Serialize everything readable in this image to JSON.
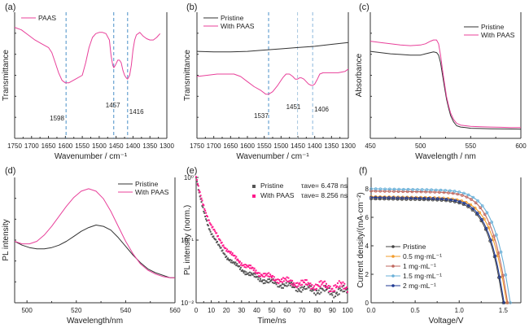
{
  "chart_data": [
    {
      "panel": "(a)",
      "type": "line",
      "xlabel": "Wavenumber / cm⁻¹",
      "ylabel": "Transmittance",
      "xlim": [
        1750,
        1300
      ],
      "ylim": [
        0,
        1
      ],
      "xticks": [
        "1750",
        "1700",
        "1650",
        "1600",
        "1550",
        "1500",
        "1450",
        "1400",
        "1350",
        "1300"
      ],
      "legend": {
        "placement": "top-left",
        "entries": [
          "PAAS"
        ]
      },
      "annotations": [
        {
          "text": "1598",
          "x": 1598
        },
        {
          "text": "1457",
          "x": 1457
        },
        {
          "text": "1416",
          "x": 1416
        }
      ],
      "series": [
        {
          "name": "PAAS",
          "color": "#e8409a",
          "x": [
            1750,
            1730,
            1710,
            1690,
            1670,
            1650,
            1640,
            1630,
            1620,
            1610,
            1600,
            1590,
            1570,
            1550,
            1540,
            1530,
            1520,
            1510,
            1500,
            1490,
            1480,
            1470,
            1465,
            1460,
            1457,
            1452,
            1445,
            1440,
            1435,
            1430,
            1425,
            1420,
            1416,
            1410,
            1405,
            1400,
            1395,
            1390,
            1380,
            1370,
            1360,
            1350,
            1340,
            1330,
            1320
          ],
          "y": [
            0.88,
            0.86,
            0.82,
            0.78,
            0.75,
            0.72,
            0.68,
            0.6,
            0.52,
            0.46,
            0.44,
            0.44,
            0.47,
            0.5,
            0.6,
            0.72,
            0.8,
            0.83,
            0.84,
            0.84,
            0.83,
            0.78,
            0.66,
            0.58,
            0.56,
            0.58,
            0.62,
            0.62,
            0.6,
            0.54,
            0.5,
            0.48,
            0.47,
            0.5,
            0.58,
            0.7,
            0.78,
            0.82,
            0.84,
            0.81,
            0.79,
            0.78,
            0.78,
            0.8,
            0.83
          ]
        }
      ]
    },
    {
      "panel": "(b)",
      "type": "line",
      "xlabel": "Wavenumber / cm⁻¹",
      "ylabel": "Transmittance",
      "xlim": [
        1750,
        1300
      ],
      "ylim": [
        0,
        1
      ],
      "xticks": [
        "1750",
        "1700",
        "1650",
        "1600",
        "1550",
        "1500",
        "1450",
        "1400",
        "1350",
        "1300"
      ],
      "legend": {
        "placement": "top-left",
        "entries": [
          "Pristine",
          "With PAAS"
        ]
      },
      "annotations": [
        {
          "text": "1537",
          "x": 1537
        },
        {
          "text": "1451",
          "x": 1451
        },
        {
          "text": "1406",
          "x": 1406
        }
      ],
      "series": [
        {
          "name": "Pristine",
          "color": "#333333",
          "x": [
            1750,
            1700,
            1650,
            1600,
            1550,
            1500,
            1450,
            1400,
            1350,
            1300
          ],
          "y": [
            0.69,
            0.685,
            0.685,
            0.69,
            0.7,
            0.71,
            0.72,
            0.73,
            0.745,
            0.76
          ]
        },
        {
          "name": "With PAAS",
          "color": "#e8409a",
          "x": [
            1750,
            1720,
            1690,
            1660,
            1640,
            1620,
            1600,
            1580,
            1560,
            1545,
            1537,
            1525,
            1510,
            1495,
            1485,
            1475,
            1465,
            1458,
            1451,
            1445,
            1440,
            1432,
            1425,
            1418,
            1410,
            1406,
            1400,
            1392,
            1385,
            1375,
            1350,
            1330,
            1310,
            1300
          ],
          "y": [
            0.49,
            0.5,
            0.51,
            0.51,
            0.51,
            0.49,
            0.45,
            0.41,
            0.38,
            0.35,
            0.35,
            0.37,
            0.42,
            0.48,
            0.51,
            0.51,
            0.49,
            0.47,
            0.47,
            0.48,
            0.48,
            0.47,
            0.45,
            0.43,
            0.42,
            0.42,
            0.43,
            0.47,
            0.51,
            0.52,
            0.52,
            0.52,
            0.53,
            0.55
          ]
        }
      ]
    },
    {
      "panel": "(c)",
      "type": "line",
      "xlabel": "Wavelength / nm",
      "ylabel": "Absorbance",
      "xlim": [
        450,
        600
      ],
      "ylim": [
        0,
        1
      ],
      "xticks": [
        "450",
        "500",
        "550",
        "600"
      ],
      "legend": {
        "placement": "top-right",
        "entries": [
          "Pristine",
          "With PAAS"
        ]
      },
      "series": [
        {
          "name": "Pristine",
          "color": "#333333",
          "x": [
            450,
            460,
            470,
            480,
            490,
            500,
            505,
            510,
            513,
            516,
            518,
            520,
            522,
            524,
            526,
            528,
            530,
            533,
            536,
            540,
            545,
            550,
            560,
            570,
            580,
            590,
            600
          ],
          "y": [
            0.69,
            0.68,
            0.67,
            0.665,
            0.66,
            0.66,
            0.67,
            0.68,
            0.685,
            0.68,
            0.66,
            0.6,
            0.5,
            0.4,
            0.31,
            0.24,
            0.18,
            0.13,
            0.1,
            0.09,
            0.085,
            0.08,
            0.078,
            0.076,
            0.075,
            0.074,
            0.073
          ]
        },
        {
          "name": "With PAAS",
          "color": "#e8409a",
          "x": [
            450,
            460,
            470,
            480,
            490,
            500,
            505,
            510,
            513,
            516,
            518,
            520,
            522,
            524,
            526,
            528,
            530,
            533,
            536,
            540,
            545,
            550,
            560,
            570,
            580,
            590,
            600
          ],
          "y": [
            0.77,
            0.76,
            0.75,
            0.74,
            0.735,
            0.74,
            0.75,
            0.77,
            0.78,
            0.78,
            0.75,
            0.66,
            0.54,
            0.43,
            0.33,
            0.26,
            0.2,
            0.15,
            0.12,
            0.105,
            0.1,
            0.095,
            0.092,
            0.09,
            0.088,
            0.086,
            0.085
          ]
        }
      ]
    },
    {
      "panel": "(d)",
      "type": "line",
      "xlabel": "Wavelength/nm",
      "ylabel": "PL intensity",
      "xlim": [
        495,
        560
      ],
      "ylim": [
        0,
        1
      ],
      "xticks": [
        "500",
        "520",
        "540",
        "560"
      ],
      "legend": {
        "placement": "top-right",
        "entries": [
          "Pristine",
          "With PAAS"
        ]
      },
      "series": [
        {
          "name": "Pristine",
          "color": "#333333",
          "x": [
            495,
            498,
            501,
            504,
            507,
            510,
            513,
            516,
            519,
            522,
            525,
            528,
            531,
            534,
            537,
            540,
            543,
            546,
            549,
            552,
            555,
            558,
            560
          ],
          "y": [
            0.49,
            0.46,
            0.44,
            0.43,
            0.43,
            0.44,
            0.46,
            0.49,
            0.53,
            0.57,
            0.6,
            0.62,
            0.61,
            0.58,
            0.52,
            0.45,
            0.38,
            0.32,
            0.27,
            0.24,
            0.22,
            0.2,
            0.2
          ]
        },
        {
          "name": "With PAAS",
          "color": "#e8409a",
          "x": [
            495,
            498,
            501,
            504,
            507,
            510,
            513,
            516,
            519,
            522,
            525,
            528,
            531,
            534,
            537,
            540,
            543,
            546,
            549,
            552,
            555,
            558,
            560
          ],
          "y": [
            0.49,
            0.47,
            0.47,
            0.49,
            0.54,
            0.61,
            0.69,
            0.77,
            0.84,
            0.89,
            0.91,
            0.89,
            0.83,
            0.73,
            0.61,
            0.49,
            0.39,
            0.31,
            0.26,
            0.23,
            0.21,
            0.2,
            0.2
          ]
        }
      ]
    },
    {
      "panel": "(e)",
      "type": "scatter",
      "xlabel": "Time/ns",
      "ylabel": "PL intensity (norm.)",
      "xlim": [
        0,
        100
      ],
      "yscale": "log",
      "ylim": [
        0.01,
        1
      ],
      "xticks": [
        "0",
        "10",
        "20",
        "30",
        "40",
        "50",
        "60",
        "70",
        "80",
        "90",
        "100"
      ],
      "yticks": [
        "10⁻²",
        "10⁻¹",
        "10⁰"
      ],
      "legend": {
        "placement": "top-right",
        "entries": [
          "Pristine",
          "With PAAS"
        ]
      },
      "annotations": [
        {
          "text": "τave= 6.478 ns",
          "series": "Pristine"
        },
        {
          "text": "τave= 8.256 ns",
          "series": "With PAAS"
        }
      ],
      "series": [
        {
          "name": "Pristine",
          "color": "#555555",
          "tau_ave_ns": 6.478,
          "x": [
            0,
            2,
            4,
            6,
            8,
            10,
            15,
            20,
            25,
            30,
            40,
            50,
            60,
            70,
            80,
            90,
            100
          ],
          "y": [
            1,
            0.55,
            0.35,
            0.24,
            0.17,
            0.13,
            0.08,
            0.055,
            0.042,
            0.034,
            0.025,
            0.021,
            0.019,
            0.017,
            0.016,
            0.015,
            0.015
          ]
        },
        {
          "name": "With PAAS",
          "color": "#ff1a8c",
          "tau_ave_ns": 8.256,
          "x": [
            0,
            2,
            4,
            6,
            8,
            10,
            15,
            20,
            25,
            30,
            40,
            50,
            60,
            70,
            80,
            90,
            100
          ],
          "y": [
            1,
            0.62,
            0.42,
            0.3,
            0.22,
            0.17,
            0.105,
            0.072,
            0.054,
            0.043,
            0.031,
            0.025,
            0.022,
            0.02,
            0.019,
            0.018,
            0.018
          ]
        }
      ]
    },
    {
      "panel": "(f)",
      "type": "line",
      "xlabel": "Voltage/V",
      "ylabel": "Current density/(mA·cm⁻²)",
      "xlim": [
        0,
        1.7
      ],
      "ylim": [
        0,
        8.8
      ],
      "xticks": [
        "0.0",
        "0.5",
        "1.0",
        "1.5"
      ],
      "yticks": [
        "0",
        "2",
        "4",
        "6",
        "8"
      ],
      "legend": {
        "placement": "bottom-left",
        "entries": [
          "Pristine",
          "0.5 mg·mL⁻¹",
          "1 mg·mL⁻¹",
          "1.5 mg·mL⁻¹",
          "2 mg·mL⁻¹"
        ]
      },
      "series": [
        {
          "name": "Pristine",
          "color": "#444444",
          "jsc": 7.3,
          "voc": 1.5
        },
        {
          "name": "0.5 mg·mL⁻¹",
          "color": "#f39c2b",
          "jsc": 7.45,
          "voc": 1.54
        },
        {
          "name": "1 mg·mL⁻¹",
          "color": "#c0675e",
          "jsc": 7.85,
          "voc": 1.55
        },
        {
          "name": "1.5 mg·mL⁻¹",
          "color": "#6ab0d8",
          "jsc": 8.0,
          "voc": 1.58
        },
        {
          "name": "2 mg·mL⁻¹",
          "color": "#1f3a93",
          "jsc": 7.4,
          "voc": 1.51
        }
      ]
    }
  ]
}
